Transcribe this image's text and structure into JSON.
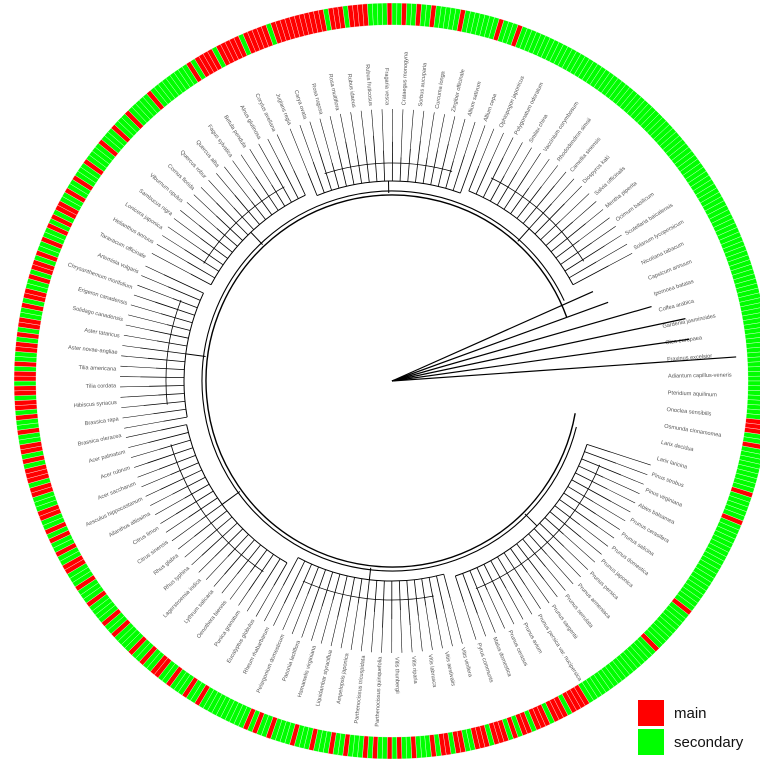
{
  "legend": {
    "main": {
      "label": "main",
      "color": "#ff0000"
    },
    "secondary": {
      "label": "secondary",
      "color": "#00ff00"
    }
  },
  "colors": {
    "branch": "#000000",
    "label": "#555555"
  },
  "visible_tip_labels": [
    "Adiantum capillus-veneris",
    "Pteridium aquilinum",
    "Onoclea sensibilis",
    "Osmunda cinnamomea",
    "Larix decidua",
    "Larix laricina",
    "Pinus strobus",
    "Pinus virginiana",
    "Abies balsamea",
    "Prunus cerasifera",
    "Prunus salicina",
    "Prunus domestica",
    "Prunus japonica",
    "Prunus persica",
    "Prunus armeniaca",
    "Prunus serrulata",
    "Prunus sargentii",
    "Prunus persica var. nucipersica",
    "Prunus avium",
    "Prunus cerasus",
    "Malus domestica",
    "Pyrus communis",
    "Vitis vinifera",
    "Vitis aestivalis",
    "Vitis labrusca",
    "Vitis riparia",
    "Vitis thunbergii",
    "Parthenocissus quinquefolia",
    "Parthenocissus tricuspidata",
    "Ampelopsis japonica",
    "Liquidambar styraciflua",
    "Hamamelis virginiana",
    "Paeonia lactiflora",
    "Pelargonium domesticum",
    "Rheum rhabarbarum",
    "Eucalyptus globulus",
    "Punica granatum",
    "Oenothera biennis",
    "Lythrum salicaria",
    "Lagerstroemia indica",
    "Rhus typhina",
    "Rhus glabra",
    "Citrus sinensis",
    "Citrus limon",
    "Ailanthus altissima",
    "Aesculus hippocastanum",
    "Acer saccharum",
    "Acer rubrum",
    "Acer palmatum",
    "Brassica oleracea",
    "Brassica rapa",
    "Hibiscus syriacus",
    "Tilia cordata",
    "Tilia americana",
    "Aster novae-angliae",
    "Aster tataricus",
    "Solidago canadensis",
    "Erigeron canadensis",
    "Chrysanthemum morifolium",
    "Artemisia vulgaris",
    "Taraxacum officinale",
    "Helianthus annuus",
    "Lonicera japonica",
    "Sambucus nigra",
    "Viburnum opulus",
    "Cornus florida",
    "Quercus robur",
    "Quercus alba",
    "Fagus sylvatica",
    "Betula pendula",
    "Alnus glutinosa",
    "Corylus avellana",
    "Juglans regia",
    "Carya ovata",
    "Rosa rugosa",
    "Rosa multiflora",
    "Rubus idaeus",
    "Rubus fruticosus",
    "Fragaria vesca",
    "Crataegus monogyna",
    "Sorbus aucuparia",
    "Curcuma longa",
    "Zingiber officinale",
    "Allium sativum",
    "Allium cepa",
    "Ophiopogon japonicus",
    "Polygonatum odoratum",
    "Smilax china",
    "Vaccinium corymbosum",
    "Rhododendron simsii",
    "Camellia sinensis",
    "Diospyros kaki",
    "Salvia officinalis",
    "Mentha piperita",
    "Ocimum basilicum",
    "Scutellaria baicalensis",
    "Solanum lycopersicum",
    "Nicotiana tabacum",
    "Capsicum annuum",
    "Ipomoea batatas",
    "Coffea arabica",
    "Gardenia jasminoides",
    "Olea europaea",
    "Fraxinus excelsior"
  ],
  "ring_cells": [
    "s",
    "s",
    "s",
    "s",
    "s",
    "s",
    "s",
    "s",
    "s",
    "s",
    "m",
    "m",
    "m",
    "s",
    "s",
    "m",
    "s",
    "s",
    "s",
    "s",
    "s",
    "s",
    "s",
    "s",
    "s",
    "m",
    "s",
    "s",
    "s",
    "s",
    "s",
    "m",
    "s",
    "s",
    "s",
    "s",
    "s",
    "s",
    "s",
    "s",
    "s",
    "s",
    "s",
    "s",
    "s",
    "s",
    "s",
    "s",
    "s",
    "s",
    "s",
    "s",
    "m",
    "s",
    "s",
    "s",
    "s",
    "s",
    "s",
    "s",
    "s",
    "s",
    "m",
    "s",
    "s",
    "s",
    "s",
    "s",
    "s",
    "s",
    "s",
    "s",
    "s",
    "s",
    "s",
    "s",
    "s",
    "s",
    "s",
    "s",
    "m",
    "m",
    "m",
    "m",
    "s",
    "m",
    "m",
    "m",
    "s",
    "m",
    "m",
    "m",
    "s",
    "m",
    "m",
    "s",
    "m",
    "s",
    "m",
    "m",
    "m",
    "s",
    "m",
    "m",
    "m",
    "s",
    "s",
    "m",
    "m",
    "s",
    "m",
    "m",
    "s",
    "m",
    "s",
    "s",
    "s",
    "m",
    "s",
    "s",
    "m",
    "s",
    "m",
    "s",
    "s",
    "m",
    "s",
    "m",
    "s",
    "s",
    "s",
    "m",
    "s",
    "s",
    "m",
    "s",
    "s",
    "s",
    "m",
    "s",
    "s",
    "s",
    "m",
    "s",
    "s",
    "s",
    "s",
    "m",
    "s",
    "s",
    "m",
    "s",
    "m",
    "s",
    "s",
    "s",
    "s",
    "s",
    "s",
    "s",
    "s",
    "s",
    "s",
    "m",
    "s",
    "s",
    "m",
    "s",
    "s",
    "s",
    "m",
    "s",
    "s",
    "m",
    "m",
    "s",
    "s",
    "m",
    "s",
    "s",
    "m",
    "s",
    "s",
    "s",
    "s",
    "m",
    "s",
    "s",
    "m",
    "s",
    "s",
    "s",
    "s",
    "m",
    "s",
    "s",
    "s",
    "m",
    "s",
    "s",
    "s",
    "m",
    "m",
    "s",
    "s",
    "m",
    "s",
    "s",
    "m",
    "s",
    "m",
    "s",
    "s",
    "m",
    "m",
    "s",
    "s",
    "s",
    "m",
    "m",
    "s",
    "m",
    "m",
    "m",
    "s",
    "m",
    "s",
    "m",
    "m",
    "s",
    "s",
    "m",
    "s",
    "s",
    "m",
    "s",
    "m",
    "m",
    "s",
    "m",
    "m",
    "s",
    "m",
    "m",
    "s",
    "m",
    "s",
    "s",
    "m",
    "m",
    "s",
    "m",
    "s",
    "m",
    "m",
    "s",
    "s",
    "m",
    "s",
    "m",
    "m",
    "s",
    "s",
    "m",
    "s",
    "m",
    "m",
    "s",
    "m",
    "s",
    "s",
    "m",
    "s",
    "s",
    "m",
    "s",
    "m",
    "s",
    "m",
    "m",
    "s",
    "s",
    "m",
    "s",
    "s",
    "m",
    "s",
    "s",
    "s",
    "m",
    "s",
    "s",
    "s",
    "s",
    "m",
    "s",
    "s",
    "s",
    "m",
    "s",
    "s",
    "s",
    "m",
    "s",
    "s",
    "s",
    "s",
    "s",
    "m",
    "s",
    "s",
    "s",
    "s",
    "s",
    "s",
    "s",
    "s",
    "s",
    "m",
    "s",
    "m",
    "m",
    "m",
    "m",
    "s",
    "m",
    "m",
    "m",
    "m",
    "m",
    "s",
    "m",
    "m",
    "m",
    "m",
    "m",
    "s",
    "m",
    "m",
    "m",
    "m",
    "m",
    "m",
    "m",
    "m",
    "m",
    "m",
    "m",
    "s",
    "m",
    "m",
    "m",
    "s",
    "m",
    "m",
    "m",
    "m",
    "s",
    "s",
    "s",
    "s",
    "m",
    "s",
    "s",
    "m",
    "s",
    "s",
    "m",
    "s",
    "s",
    "m",
    "s",
    "s",
    "s",
    "s",
    "s",
    "m",
    "s",
    "s",
    "s",
    "s",
    "s",
    "s",
    "s",
    "m",
    "s",
    "s",
    "s",
    "m",
    "s",
    "s",
    "s",
    "s",
    "s",
    "s",
    "s",
    "s",
    "s",
    "s",
    "s",
    "s",
    "s",
    "s",
    "s",
    "s",
    "s",
    "s",
    "s",
    "s",
    "s",
    "s",
    "s",
    "s",
    "s",
    "s",
    "s",
    "s",
    "s",
    "s",
    "s",
    "s",
    "s",
    "s",
    "s",
    "s",
    "s",
    "s",
    "s",
    "s",
    "s",
    "s",
    "s",
    "s",
    "s",
    "s",
    "s",
    "s",
    "s",
    "s",
    "s",
    "s",
    "s",
    "s",
    "s",
    "s",
    "s",
    "s",
    "s",
    "s",
    "s",
    "s",
    "s",
    "s",
    "s",
    "s",
    "s",
    "s",
    "s",
    "s",
    "s",
    "s",
    "s",
    "s",
    "s",
    "s",
    "s",
    "s",
    "s",
    "s",
    "s",
    "s",
    "s",
    "s",
    "s",
    "s",
    "s",
    "s",
    "s",
    "s",
    "s"
  ]
}
